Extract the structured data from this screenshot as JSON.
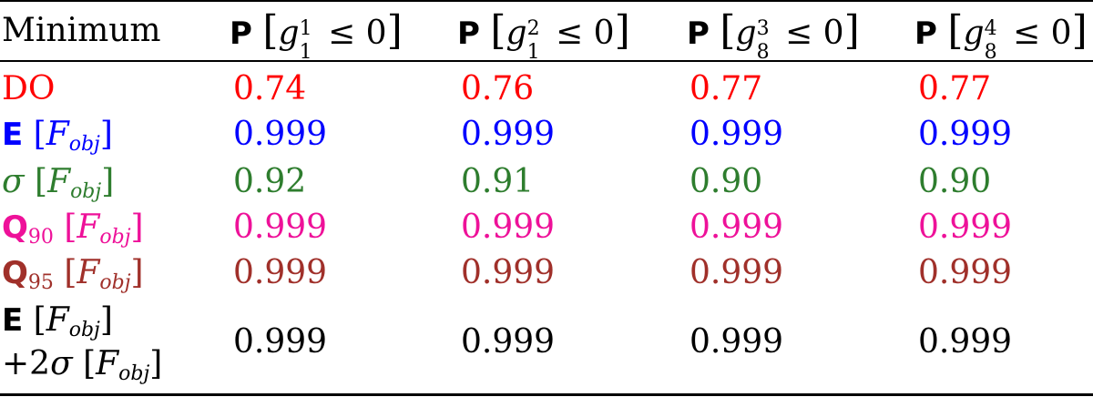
{
  "colors": {
    "do": "#ff0000",
    "mean": "#0000ff",
    "std": "#2e7d2e",
    "q90": "#ee1199",
    "q95": "#a0302a",
    "combined": "#000000"
  },
  "header": {
    "col0": "Minimum",
    "cols": [
      {
        "prob": "P",
        "g": "g",
        "sub": "1",
        "sup": "1",
        "rel": "≤ 0"
      },
      {
        "prob": "P",
        "g": "g",
        "sub": "1",
        "sup": "2",
        "rel": "≤ 0"
      },
      {
        "prob": "P",
        "g": "g",
        "sub": "8",
        "sup": "3",
        "rel": "≤ 0"
      },
      {
        "prob": "P",
        "g": "g",
        "sub": "8",
        "sup": "4",
        "rel": "≤ 0"
      }
    ]
  },
  "rows": [
    {
      "label": "DO",
      "values": [
        "0.74",
        "0.76",
        "0.77",
        "0.77"
      ]
    },
    {
      "label_op": "E",
      "label_f": "F",
      "label_fsub": "obj",
      "values": [
        "0.999",
        "0.999",
        "0.999",
        "0.999"
      ]
    },
    {
      "label_op": "σ",
      "label_f": "F",
      "label_fsub": "obj",
      "values": [
        "0.92",
        "0.91",
        "0.90",
        "0.90"
      ]
    },
    {
      "label_op": "Q",
      "label_opsub": "90",
      "label_f": "F",
      "label_fsub": "obj",
      "values": [
        "0.999",
        "0.999",
        "0.999",
        "0.999"
      ]
    },
    {
      "label_op": "Q",
      "label_opsub": "95",
      "label_f": "F",
      "label_fsub": "obj",
      "values": [
        "0.999",
        "0.999",
        "0.999",
        "0.999"
      ]
    },
    {
      "label_op": "E",
      "label_f": "F",
      "label_fsub": "obj",
      "label2_prefix": "+2",
      "label2_op": "σ",
      "label2_f": "F",
      "label2_fsub": "obj",
      "values": [
        "0.999",
        "0.999",
        "0.999",
        "0.999"
      ]
    }
  ]
}
